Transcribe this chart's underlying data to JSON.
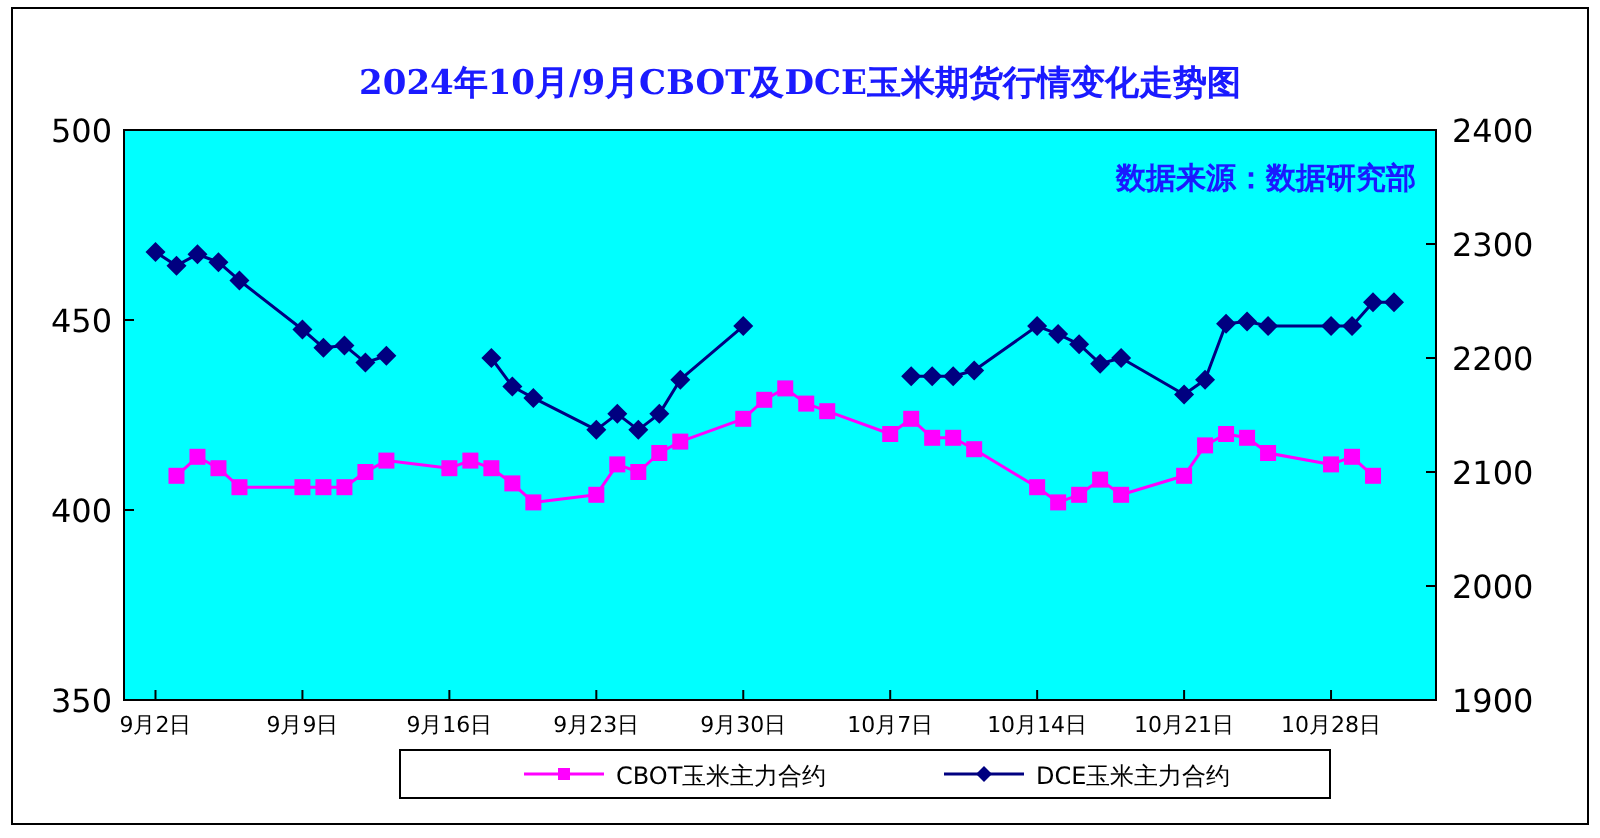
{
  "chart_data": {
    "type": "line",
    "title": "2024年10月/9月CBOT及DCE玉米期货行情变化走势图",
    "annotations": [
      "数据来源：数据研究部"
    ],
    "x": [
      "2024-09-02",
      "2024-09-03",
      "2024-09-04",
      "2024-09-05",
      "2024-09-06",
      "2024-09-09",
      "2024-09-10",
      "2024-09-11",
      "2024-09-12",
      "2024-09-13",
      "2024-09-16",
      "2024-09-17",
      "2024-09-18",
      "2024-09-19",
      "2024-09-20",
      "2024-09-23",
      "2024-09-24",
      "2024-09-25",
      "2024-09-26",
      "2024-09-27",
      "2024-09-30",
      "2024-10-01",
      "2024-10-02",
      "2024-10-03",
      "2024-10-04",
      "2024-10-07",
      "2024-10-08",
      "2024-10-09",
      "2024-10-10",
      "2024-10-11",
      "2024-10-14",
      "2024-10-15",
      "2024-10-16",
      "2024-10-17",
      "2024-10-18",
      "2024-10-21",
      "2024-10-22",
      "2024-10-23",
      "2024-10-24",
      "2024-10-25",
      "2024-10-28",
      "2024-10-29",
      "2024-10-30",
      "2024-10-31"
    ],
    "series": [
      {
        "name": "CBOT玉米主力合约",
        "color": "#ff00ff",
        "marker": "square",
        "values": [
          null,
          409,
          414,
          411,
          406,
          406,
          406,
          406,
          410,
          413,
          411,
          413,
          411,
          407,
          402,
          404,
          412,
          410,
          415,
          418,
          424,
          429,
          432,
          428,
          426,
          420,
          424,
          419,
          419,
          416,
          406,
          402,
          404,
          408,
          404,
          409,
          417,
          420,
          419,
          415,
          412,
          414,
          409,
          null
        ]
      },
      {
        "name": "DCE玉米主力合约",
        "color": "#000080",
        "marker": "diamond",
        "axis": "y2",
        "values": [
          2293,
          2281,
          2291,
          2284,
          2268,
          2225,
          2209,
          2211,
          2196,
          2202,
          null,
          null,
          2200,
          2175,
          2165,
          2137,
          2151,
          2137,
          2151,
          2181,
          2228,
          null,
          null,
          null,
          null,
          null,
          2184,
          2184,
          2184,
          2189,
          2228,
          2221,
          2212,
          2195,
          2200,
          2168,
          2181,
          2230,
          2232,
          2228,
          2228,
          2228,
          2249,
          2249
        ]
      }
    ],
    "xlim": [
      "2024-08-31T12:00",
      "2024-11-02"
    ],
    "xticks": [
      {
        "value": "2024-09-02",
        "label": "9月2日"
      },
      {
        "value": "2024-09-09",
        "label": "9月9日"
      },
      {
        "value": "2024-09-16",
        "label": "9月16日"
      },
      {
        "value": "2024-09-23",
        "label": "9月23日"
      },
      {
        "value": "2024-09-30",
        "label": "9月30日"
      },
      {
        "value": "2024-10-07",
        "label": "10月7日"
      },
      {
        "value": "2024-10-14",
        "label": "10月14日"
      },
      {
        "value": "2024-10-21",
        "label": "10月21日"
      },
      {
        "value": "2024-10-28",
        "label": "10月28日"
      }
    ],
    "ylim": [
      350,
      500
    ],
    "yticks": [
      350,
      400,
      450,
      500
    ],
    "y2lim": [
      1900,
      2400
    ],
    "y2ticks": [
      1900,
      2000,
      2100,
      2200,
      2300,
      2400
    ],
    "legend": "bottom"
  }
}
